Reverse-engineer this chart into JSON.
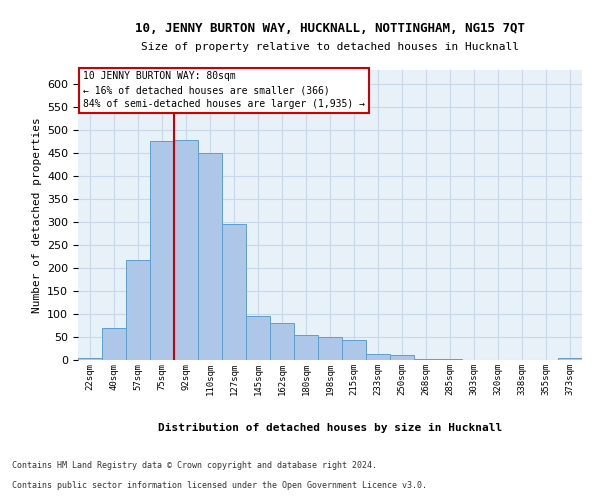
{
  "title": "10, JENNY BURTON WAY, HUCKNALL, NOTTINGHAM, NG15 7QT",
  "subtitle": "Size of property relative to detached houses in Hucknall",
  "xlabel": "Distribution of detached houses by size in Hucknall",
  "ylabel": "Number of detached properties",
  "bar_labels": [
    "22sqm",
    "40sqm",
    "57sqm",
    "75sqm",
    "92sqm",
    "110sqm",
    "127sqm",
    "145sqm",
    "162sqm",
    "180sqm",
    "198sqm",
    "215sqm",
    "233sqm",
    "250sqm",
    "268sqm",
    "285sqm",
    "303sqm",
    "320sqm",
    "338sqm",
    "355sqm",
    "373sqm"
  ],
  "bar_values": [
    5,
    70,
    218,
    475,
    477,
    450,
    295,
    96,
    80,
    55,
    50,
    43,
    12,
    10,
    3,
    3,
    0,
    0,
    0,
    0,
    5
  ],
  "bar_color": "#aec6e8",
  "bar_edge_color": "#5a9fd4",
  "grid_color": "#c8d8e8",
  "bg_color": "#e8f0f8",
  "annotation_line1": "10 JENNY BURTON WAY: 80sqm",
  "annotation_line2": "← 16% of detached houses are smaller (366)",
  "annotation_line3": "84% of semi-detached houses are larger (1,935) →",
  "annotation_box_color": "#ffffff",
  "annotation_box_edge": "#cc0000",
  "property_vline_color": "#cc0000",
  "ylim": [
    0,
    630
  ],
  "yticks": [
    0,
    50,
    100,
    150,
    200,
    250,
    300,
    350,
    400,
    450,
    500,
    550,
    600
  ],
  "footer_line1": "Contains HM Land Registry data © Crown copyright and database right 2024.",
  "footer_line2": "Contains public sector information licensed under the Open Government Licence v3.0."
}
